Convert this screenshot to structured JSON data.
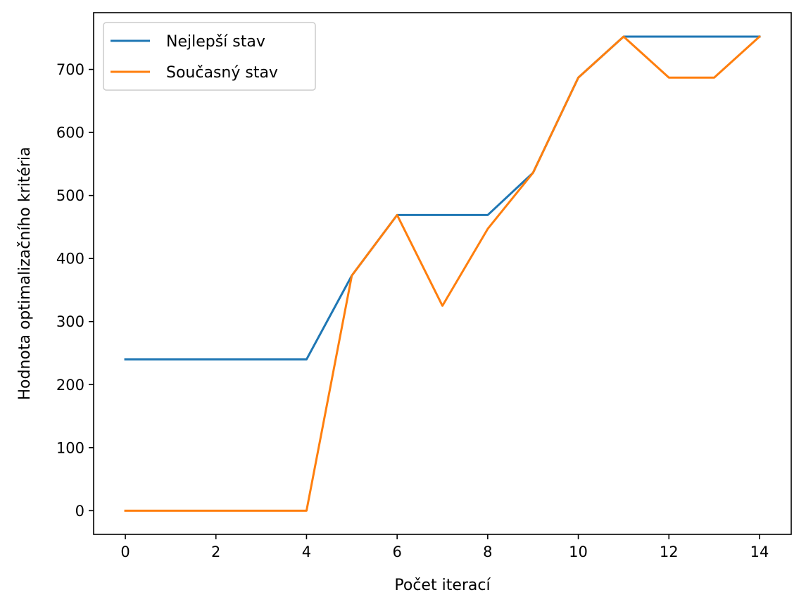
{
  "chart_data": {
    "type": "line",
    "title": "",
    "xlabel": "Počet iterací",
    "ylabel": "Hodnota optimalizačního kritéria",
    "xlim": [
      -0.7,
      14.7
    ],
    "ylim": [
      -37.6,
      790
    ],
    "xticks": [
      0,
      2,
      4,
      6,
      8,
      10,
      12,
      14
    ],
    "yticks": [
      0,
      100,
      200,
      300,
      400,
      500,
      600,
      700
    ],
    "grid": false,
    "legend_position": "top-left",
    "x": [
      0,
      1,
      2,
      3,
      4,
      5,
      6,
      7,
      8,
      9,
      10,
      11,
      12,
      13,
      14
    ],
    "series": [
      {
        "name": "Nejlepší stav",
        "color": "#1f77b4",
        "values": [
          240,
          240,
          240,
          240,
          240,
          373,
          469,
          469,
          469,
          536,
          687,
          752,
          752,
          752,
          752
        ]
      },
      {
        "name": "Současný stav",
        "color": "#ff7f0e",
        "values": [
          0,
          0,
          0,
          0,
          0,
          373,
          469,
          325,
          447,
          536,
          687,
          752,
          687,
          687,
          752
        ]
      }
    ]
  }
}
